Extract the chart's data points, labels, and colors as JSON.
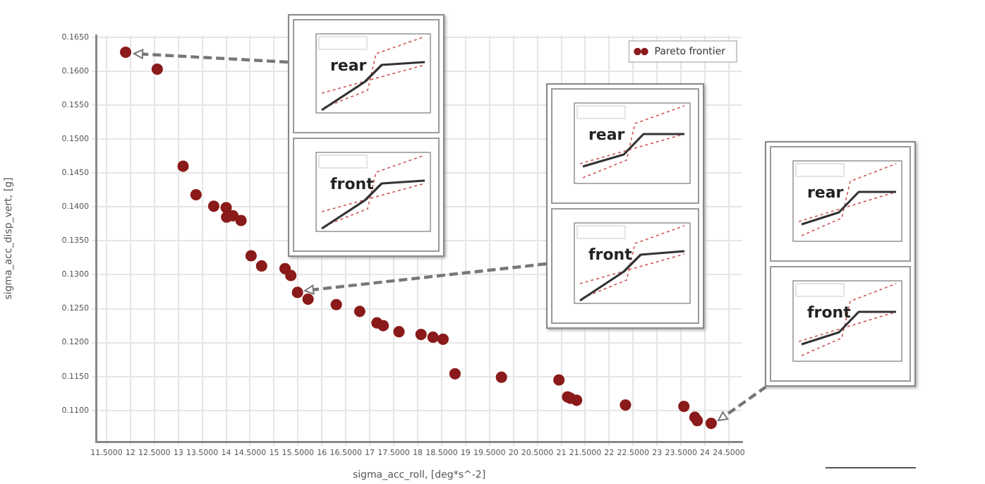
{
  "chart_data": {
    "type": "scatter",
    "xlabel": "sigma_acc_roll, [deg*s^-2]",
    "ylabel": "sigma_acc_disp_vert, [g]",
    "xlim": [
      11.28,
      24.78
    ],
    "ylim": [
      0.1054,
      0.1653
    ],
    "xticks": [
      {
        "value": 11.5,
        "label": "11.5000"
      },
      12,
      {
        "value": 12.5,
        "label": "12.5000"
      },
      13,
      {
        "value": 13.5,
        "label": "13.5000"
      },
      14,
      {
        "value": 14.5,
        "label": "14.5000"
      },
      15,
      {
        "value": 15.5,
        "label": "15.5000"
      },
      16,
      {
        "value": 16.5,
        "label": "16.5000"
      },
      17,
      {
        "value": 17.5,
        "label": "17.5000"
      },
      18,
      {
        "value": 18.5,
        "label": "18.5000"
      },
      19,
      {
        "value": 19.5,
        "label": "19.5000"
      },
      20,
      {
        "value": 20.5,
        "label": "20.5000"
      },
      21,
      {
        "value": 21.5,
        "label": "21.5000"
      },
      22,
      {
        "value": 22.5,
        "label": "22.5000"
      },
      23,
      {
        "value": 23.5,
        "label": "23.5000"
      },
      24,
      {
        "value": 24.5,
        "label": "24.5000"
      }
    ],
    "yticks": [
      {
        "value": 0.11,
        "label": "0.1100"
      },
      {
        "value": 0.115,
        "label": "0.1150"
      },
      {
        "value": 0.12,
        "label": "0.1200"
      },
      {
        "value": 0.125,
        "label": "0.1250"
      },
      {
        "value": 0.13,
        "label": "0.1300"
      },
      {
        "value": 0.135,
        "label": "0.1350"
      },
      {
        "value": 0.14,
        "label": "0.1400"
      },
      {
        "value": 0.145,
        "label": "0.1450"
      },
      {
        "value": 0.15,
        "label": "0.1500"
      },
      {
        "value": 0.155,
        "label": "0.1550"
      },
      {
        "value": 0.16,
        "label": "0.1600"
      },
      {
        "value": 0.165,
        "label": "0.1650"
      }
    ],
    "grid": true,
    "legend": "top right",
    "marker": "circle",
    "series": [
      {
        "name": "Pareto frontier",
        "color": "#8b1a1a",
        "x": [
          11.9,
          12.56,
          13.1,
          13.37,
          13.74,
          14.0,
          14.01,
          14.14,
          14.31,
          14.52,
          14.74,
          15.23,
          15.35,
          15.49,
          15.71,
          16.3,
          16.79,
          17.15,
          17.28,
          17.61,
          18.07,
          18.32,
          18.53,
          18.78,
          19.75,
          20.95,
          21.13,
          21.19,
          21.32,
          22.34,
          23.56,
          23.79,
          23.84,
          24.13
        ],
        "values": [
          0.1628,
          0.1603,
          0.146,
          0.1418,
          0.1401,
          0.1399,
          0.1385,
          0.1387,
          0.138,
          0.1328,
          0.1313,
          0.1309,
          0.1299,
          0.1274,
          0.1264,
          0.1256,
          0.1246,
          0.1229,
          0.1225,
          0.1216,
          0.1212,
          0.1208,
          0.1205,
          0.1154,
          0.1149,
          0.1145,
          0.112,
          0.1118,
          0.1115,
          0.1108,
          0.1106,
          0.109,
          0.1085,
          0.1081
        ]
      }
    ],
    "annotations": [
      "rear",
      "front",
      "rear",
      "front",
      "rear",
      "front"
    ]
  }
}
